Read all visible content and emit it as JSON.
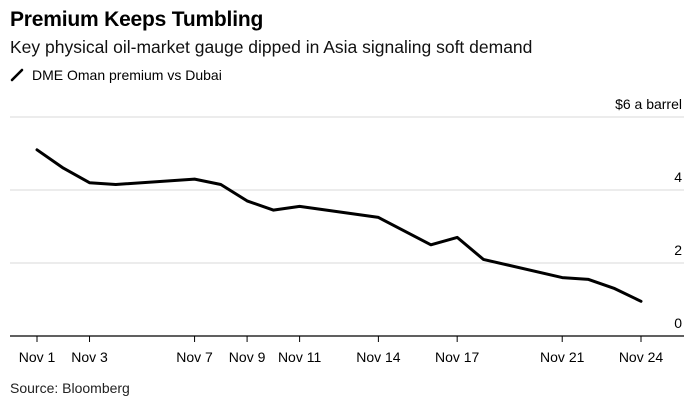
{
  "title": "Premium Keeps Tumbling",
  "subtitle": "Key physical oil-market gauge dipped in Asia signaling soft demand",
  "source": "Source: Bloomberg",
  "colors": {
    "line": "#000000",
    "grid": "#d9d9d9",
    "axis": "#000000"
  },
  "chart_data": {
    "type": "line",
    "title": "Premium Keeps Tumbling",
    "subtitle": "Key physical oil-market gauge dipped in Asia signaling soft demand",
    "ylabel": "$6 a barrel",
    "xlabel": "",
    "ylim": [
      0,
      6
    ],
    "yticks": [
      0,
      2,
      4,
      6
    ],
    "ytick_labels": [
      "0",
      "2",
      "4",
      "$6 a barrel"
    ],
    "grid": true,
    "legend_position": "top-left",
    "x_range": [
      1,
      24
    ],
    "x_ticks": [
      {
        "day": 1,
        "label": "Nov 1"
      },
      {
        "day": 3,
        "label": "Nov 3"
      },
      {
        "day": 7,
        "label": "Nov 7"
      },
      {
        "day": 9,
        "label": "Nov 9"
      },
      {
        "day": 11,
        "label": "Nov 11"
      },
      {
        "day": 14,
        "label": "Nov 14"
      },
      {
        "day": 17,
        "label": "Nov 17"
      },
      {
        "day": 21,
        "label": "Nov 21"
      },
      {
        "day": 24,
        "label": "Nov 24"
      }
    ],
    "series": [
      {
        "name": "DME Oman premium vs Dubai",
        "x": [
          1,
          2,
          3,
          4,
          7,
          8,
          9,
          10,
          11,
          14,
          16,
          17,
          18,
          21,
          22,
          23,
          24
        ],
        "values": [
          5.1,
          4.6,
          4.2,
          4.15,
          4.3,
          4.15,
          3.7,
          3.45,
          3.55,
          3.25,
          2.5,
          2.7,
          2.1,
          1.6,
          1.55,
          1.3,
          0.95
        ]
      }
    ]
  }
}
